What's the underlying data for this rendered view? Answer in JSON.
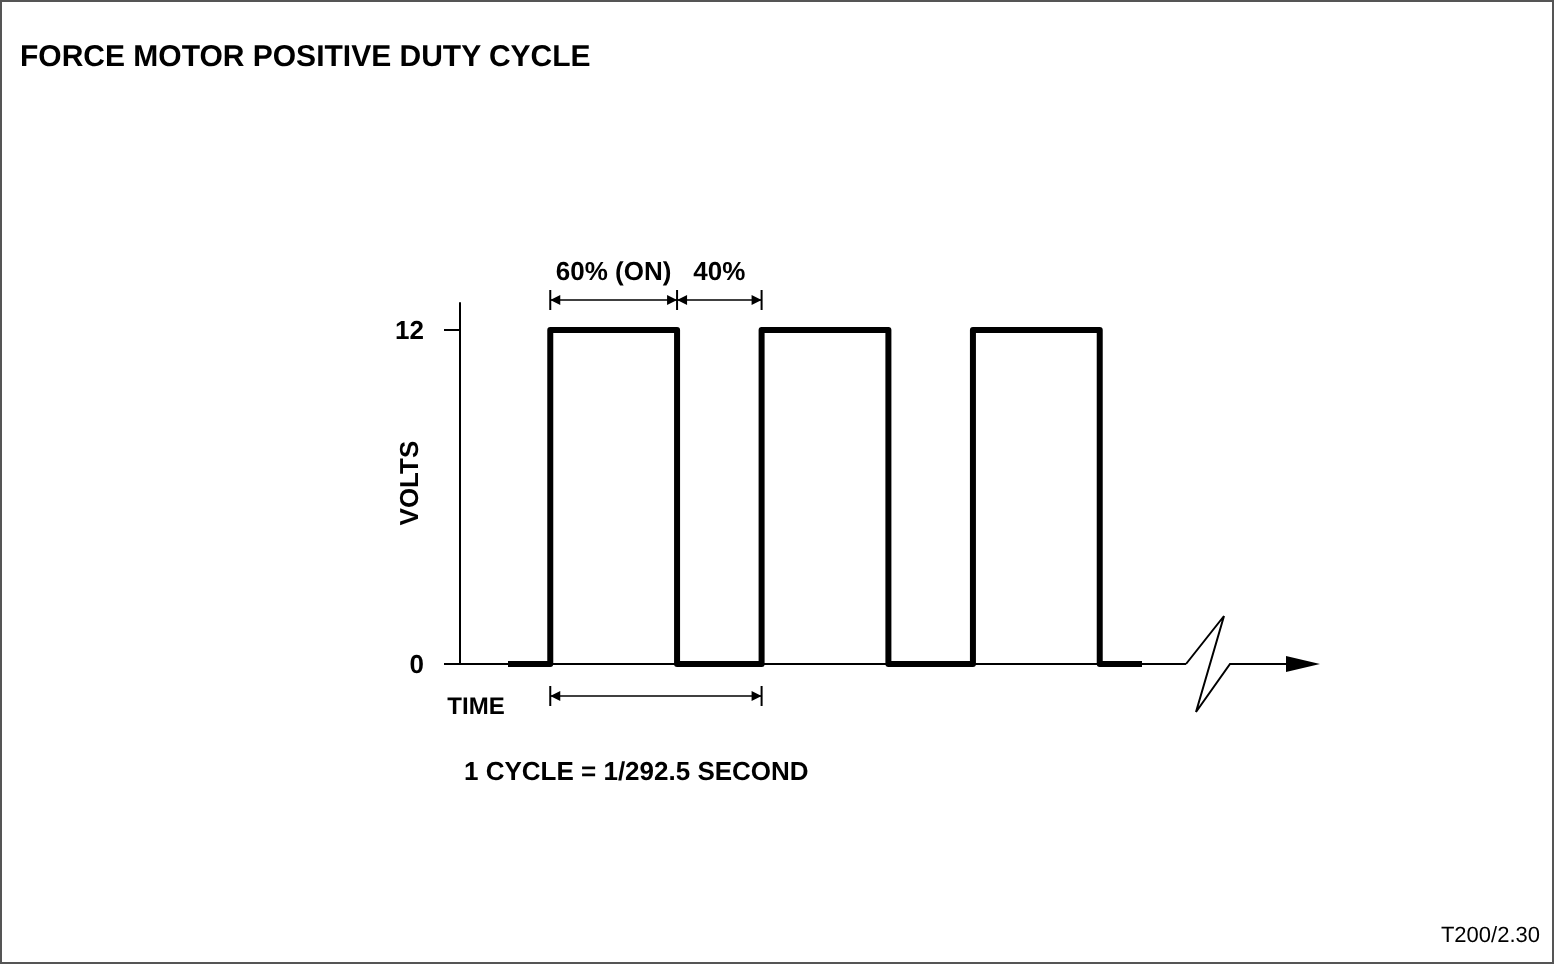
{
  "chart_data": {
    "type": "step",
    "title": "FORCE MOTOR POSITIVE DUTY CYCLE",
    "xlabel": "TIME",
    "ylabel": "VOLTS",
    "categories": [
      null,
      null,
      null,
      null,
      null,
      null,
      null,
      null,
      null,
      null,
      null,
      null,
      null,
      null,
      null,
      null
    ],
    "series": [
      {
        "color": "#000000",
        "values": [
          0,
          12,
          12,
          12,
          0,
          0,
          12,
          12,
          12,
          0,
          0,
          12,
          12,
          12,
          0,
          0
        ]
      }
    ],
    "ylim": [
      0,
      13
    ],
    "yticks": [
      0,
      12
    ],
    "tick_labels": "y",
    "grid": false,
    "annotations": [
      "60% (ON)",
      "40%",
      "1 CYCLE = 1/292.5 SECOND",
      "T200/2.30"
    ]
  }
}
